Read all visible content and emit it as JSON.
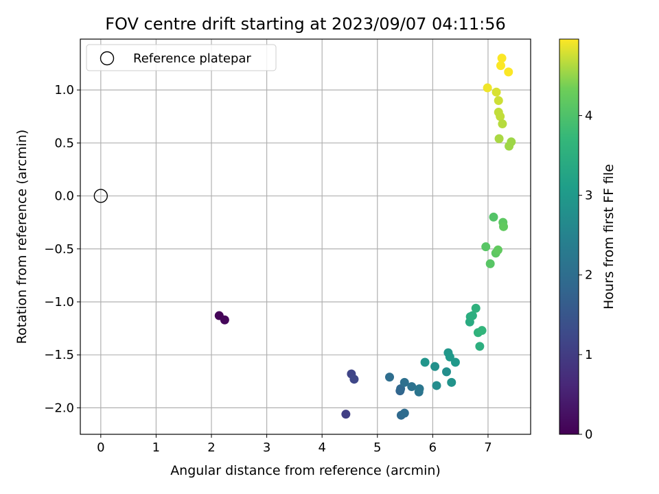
{
  "chart_data": {
    "type": "scatter",
    "title": "FOV centre drift starting at 2023/09/07 04:11:56",
    "xlabel": "Angular distance from reference (arcmin)",
    "ylabel": "Rotation from reference (arcmin)",
    "xlim": [
      -0.37,
      7.77
    ],
    "ylim": [
      -2.25,
      1.48
    ],
    "x_ticks": [
      0,
      1,
      2,
      3,
      4,
      5,
      6,
      7
    ],
    "x_tick_labels": [
      "0",
      "1",
      "2",
      "3",
      "4",
      "5",
      "6",
      "7"
    ],
    "y_ticks": [
      1.0,
      0.5,
      0.0,
      -0.5,
      -1.0,
      -1.5,
      -2.0
    ],
    "y_tick_labels": [
      "1.0",
      "0.5",
      "0.0",
      "−0.5",
      "−1.0",
      "−1.5",
      "−2.0"
    ],
    "grid": true,
    "legend": {
      "position": "top-left",
      "entries": [
        {
          "label": "Reference platepar",
          "marker": "open-circle"
        }
      ]
    },
    "reference_point": {
      "x": 0,
      "y": 0
    },
    "colormap": "viridis",
    "colorbar": {
      "label": "Hours from first FF file",
      "range": [
        0,
        4.96
      ],
      "ticks": [
        0,
        1,
        2,
        3,
        4
      ],
      "tick_labels": [
        "0",
        "1",
        "2",
        "3",
        "4"
      ]
    },
    "points": [
      {
        "x": 2.14,
        "y": -1.13,
        "c": 0.05
      },
      {
        "x": 2.24,
        "y": -1.17,
        "c": 0.1
      },
      {
        "x": 4.43,
        "y": -2.06,
        "c": 1.05
      },
      {
        "x": 4.53,
        "y": -1.68,
        "c": 1.15
      },
      {
        "x": 4.58,
        "y": -1.73,
        "c": 1.2
      },
      {
        "x": 5.22,
        "y": -1.71,
        "c": 2.0
      },
      {
        "x": 5.41,
        "y": -1.84,
        "c": 1.8
      },
      {
        "x": 5.42,
        "y": -1.82,
        "c": 1.85
      },
      {
        "x": 5.43,
        "y": -2.07,
        "c": 1.9
      },
      {
        "x": 5.49,
        "y": -2.05,
        "c": 1.95
      },
      {
        "x": 5.49,
        "y": -1.76,
        "c": 2.05
      },
      {
        "x": 5.62,
        "y": -1.8,
        "c": 2.1
      },
      {
        "x": 5.75,
        "y": -1.85,
        "c": 2.15
      },
      {
        "x": 5.76,
        "y": -1.82,
        "c": 2.2
      },
      {
        "x": 5.86,
        "y": -1.57,
        "c": 2.9
      },
      {
        "x": 6.04,
        "y": -1.61,
        "c": 2.8
      },
      {
        "x": 6.07,
        "y": -1.79,
        "c": 2.7
      },
      {
        "x": 6.25,
        "y": -1.66,
        "c": 2.75
      },
      {
        "x": 6.28,
        "y": -1.48,
        "c": 2.95
      },
      {
        "x": 6.31,
        "y": -1.52,
        "c": 3.0
      },
      {
        "x": 6.34,
        "y": -1.76,
        "c": 2.85
      },
      {
        "x": 6.41,
        "y": -1.57,
        "c": 3.0
      },
      {
        "x": 6.67,
        "y": -1.19,
        "c": 3.4
      },
      {
        "x": 6.68,
        "y": -1.14,
        "c": 3.45
      },
      {
        "x": 6.72,
        "y": -1.13,
        "c": 3.5
      },
      {
        "x": 6.78,
        "y": -1.06,
        "c": 3.55
      },
      {
        "x": 6.82,
        "y": -1.29,
        "c": 3.6
      },
      {
        "x": 6.85,
        "y": -1.42,
        "c": 3.5
      },
      {
        "x": 6.89,
        "y": -1.27,
        "c": 3.65
      },
      {
        "x": 6.96,
        "y": -0.48,
        "c": 4.1
      },
      {
        "x": 7.04,
        "y": -0.64,
        "c": 4.1
      },
      {
        "x": 7.1,
        "y": -0.2,
        "c": 4.05
      },
      {
        "x": 7.14,
        "y": -0.54,
        "c": 4.15
      },
      {
        "x": 7.18,
        "y": -0.51,
        "c": 4.2
      },
      {
        "x": 7.27,
        "y": -0.25,
        "c": 4.15
      },
      {
        "x": 7.28,
        "y": -0.29,
        "c": 4.2
      },
      {
        "x": 6.99,
        "y": 1.02,
        "c": 4.9
      },
      {
        "x": 7.15,
        "y": 0.98,
        "c": 4.8
      },
      {
        "x": 7.19,
        "y": 0.9,
        "c": 4.75
      },
      {
        "x": 7.19,
        "y": 0.79,
        "c": 4.7
      },
      {
        "x": 7.22,
        "y": 0.75,
        "c": 4.7
      },
      {
        "x": 7.26,
        "y": 0.68,
        "c": 4.65
      },
      {
        "x": 7.2,
        "y": 0.54,
        "c": 4.6
      },
      {
        "x": 7.23,
        "y": 1.23,
        "c": 4.95
      },
      {
        "x": 7.25,
        "y": 1.3,
        "c": 4.95
      },
      {
        "x": 7.37,
        "y": 1.17,
        "c": 4.95
      },
      {
        "x": 7.38,
        "y": 0.47,
        "c": 4.55
      },
      {
        "x": 7.42,
        "y": 0.51,
        "c": 4.55
      }
    ]
  }
}
